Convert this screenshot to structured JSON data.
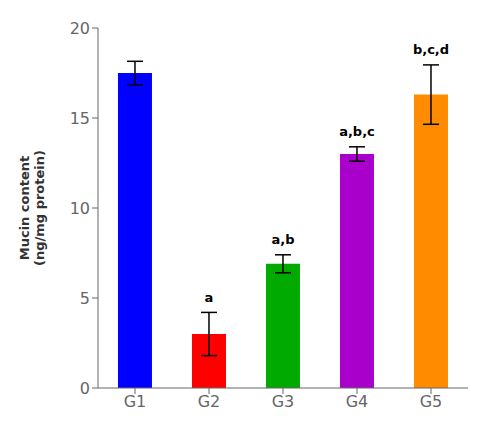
{
  "chart_data": {
    "type": "bar",
    "categories": [
      "G1",
      "G2",
      "G3",
      "G4",
      "G5"
    ],
    "values": [
      17.5,
      3.0,
      6.9,
      13.0,
      16.3
    ],
    "errors": [
      0.65,
      1.2,
      0.5,
      0.4,
      1.65
    ],
    "colors": [
      "#0000FF",
      "#FF0000",
      "#00AA00",
      "#AA00CC",
      "#FF8C00"
    ],
    "ylabel": "Mucin content\n(ng/mg protein)",
    "ylim": [
      0,
      20
    ],
    "yticks": [
      0,
      5,
      10,
      15,
      20
    ],
    "annotations": [
      {
        "text": "a",
        "x": "G2",
        "y": 4.5
      },
      {
        "text": "a,b",
        "x": "G3",
        "y": 7.7
      },
      {
        "text": "a,b,c",
        "x": "G4",
        "y": 13.7
      },
      {
        "text": "b,c,d",
        "x": "G5",
        "y": 18.3
      }
    ],
    "grid": false
  }
}
